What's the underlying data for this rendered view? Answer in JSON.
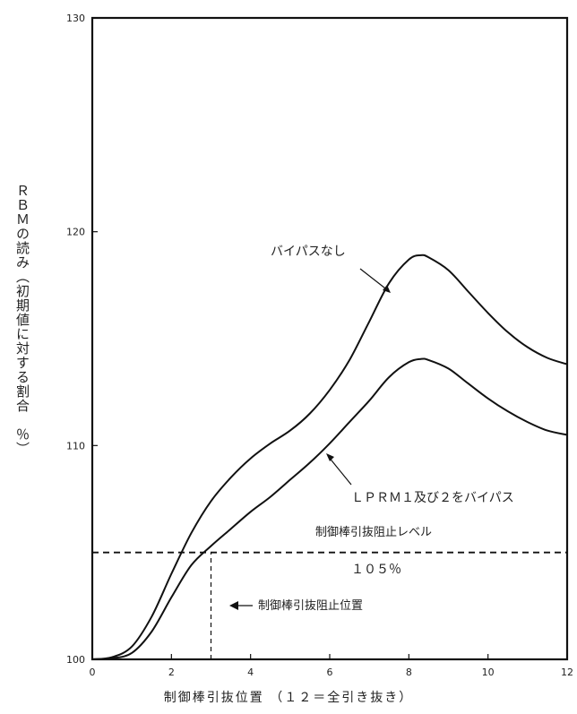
{
  "chart_data": {
    "type": "line",
    "xlabel": "制御棒引抜位置 （１２＝全引き抜き）",
    "ylabel": "ＲＢＭの読み（初期値に対する割合　％）",
    "xlim": [
      0,
      12
    ],
    "ylim": [
      100,
      130
    ],
    "xticks": [
      "0",
      "2",
      "4",
      "6",
      "8",
      "10",
      "12"
    ],
    "yticks": [
      "100",
      "110",
      "120",
      "130"
    ],
    "grid": false,
    "series": [
      {
        "name": "バイパスなし",
        "x": [
          0,
          0.5,
          1,
          1.5,
          2,
          2.5,
          3,
          3.5,
          4,
          4.5,
          5,
          5.5,
          6,
          6.5,
          7,
          7.5,
          8,
          8.3,
          8.5,
          9,
          9.5,
          10,
          10.5,
          11,
          11.5,
          12
        ],
        "y": [
          100,
          100.1,
          100.6,
          102.0,
          104.0,
          105.9,
          107.4,
          108.5,
          109.4,
          110.1,
          110.7,
          111.5,
          112.6,
          114.0,
          115.8,
          117.6,
          118.7,
          118.9,
          118.8,
          118.2,
          117.2,
          116.2,
          115.3,
          114.6,
          114.1,
          113.8
        ]
      },
      {
        "name": "ＬＰＲＭ１及び２をバイパス",
        "x": [
          0,
          0.5,
          1,
          1.5,
          2,
          2.5,
          3,
          3.5,
          4,
          4.5,
          5,
          5.5,
          6,
          6.5,
          7,
          7.5,
          8,
          8.3,
          8.5,
          9,
          9.5,
          10,
          10.5,
          11,
          11.5,
          12
        ],
        "y": [
          100,
          100.05,
          100.3,
          101.3,
          102.9,
          104.4,
          105.3,
          106.1,
          106.9,
          107.6,
          108.4,
          109.2,
          110.1,
          111.1,
          112.1,
          113.2,
          113.9,
          114.05,
          114.0,
          113.6,
          112.9,
          112.2,
          111.6,
          111.1,
          110.7,
          110.5
        ]
      }
    ],
    "reference_lines": [
      {
        "type": "horizontal",
        "y": 105,
        "style": "dashed"
      },
      {
        "type": "vertical",
        "x": 3,
        "y_from": 100,
        "y_to": 105,
        "style": "dashed"
      }
    ],
    "annotations": [
      {
        "text": "バイパスなし",
        "points_to": {
          "x": 7.6,
          "y": 116.5
        }
      },
      {
        "text": "ＬＰＲＭ１及び２をバイパス",
        "points_to": {
          "x": 6.0,
          "y": 110.1
        }
      },
      {
        "text": "制御棒引抜阻止レベル"
      },
      {
        "text": "１０５％"
      },
      {
        "text": "制御棒引抜阻止位置",
        "arrow": "left"
      }
    ]
  }
}
